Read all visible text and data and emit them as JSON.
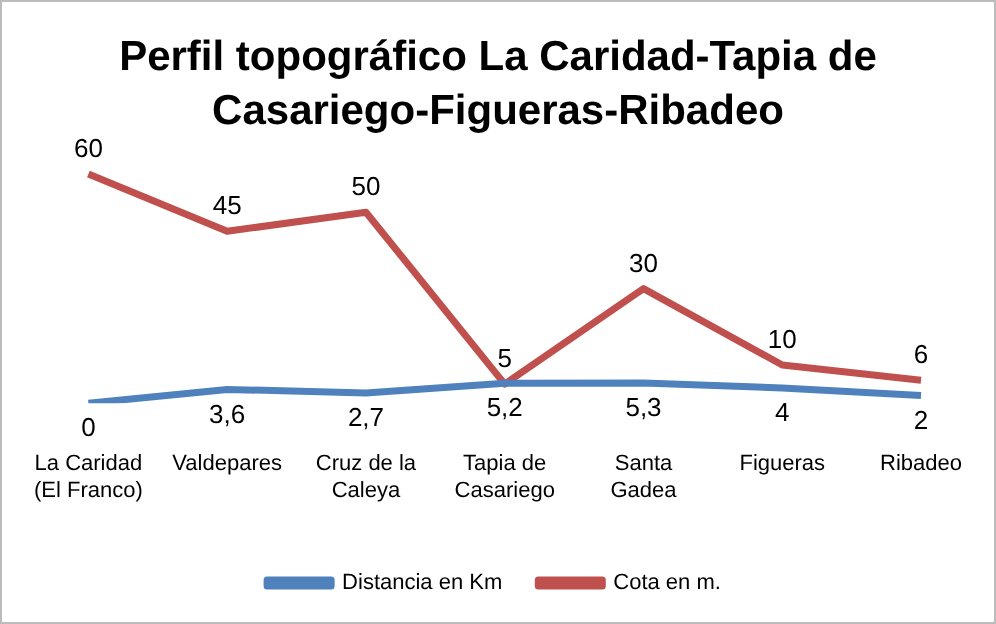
{
  "chart_data": {
    "type": "line",
    "title": "Perfil topográfico La Caridad-Tapia de Casariego-Figueras-Ribadeo",
    "categories": [
      "La Caridad (El Franco)",
      "Valdepares",
      "Cruz de la Caleya",
      "Tapia de Casariego",
      "Santa Gadea",
      "Figueras",
      "Ribadeo"
    ],
    "series": [
      {
        "name": "Distancia en Km",
        "color": "#4f81bd",
        "values": [
          0,
          3.6,
          2.7,
          5.2,
          5.3,
          4,
          2
        ],
        "value_labels": [
          "0",
          "3,6",
          "2,7",
          "5,2",
          "5,3",
          "4",
          "2"
        ]
      },
      {
        "name": "Cota en m.",
        "color": "#c0504d",
        "values": [
          60,
          45,
          50,
          5,
          30,
          10,
          6
        ],
        "value_labels": [
          "60",
          "45",
          "50",
          "5",
          "30",
          "10",
          "6"
        ]
      }
    ],
    "legend": "bottom",
    "marker": "none",
    "line_style": "solid"
  }
}
